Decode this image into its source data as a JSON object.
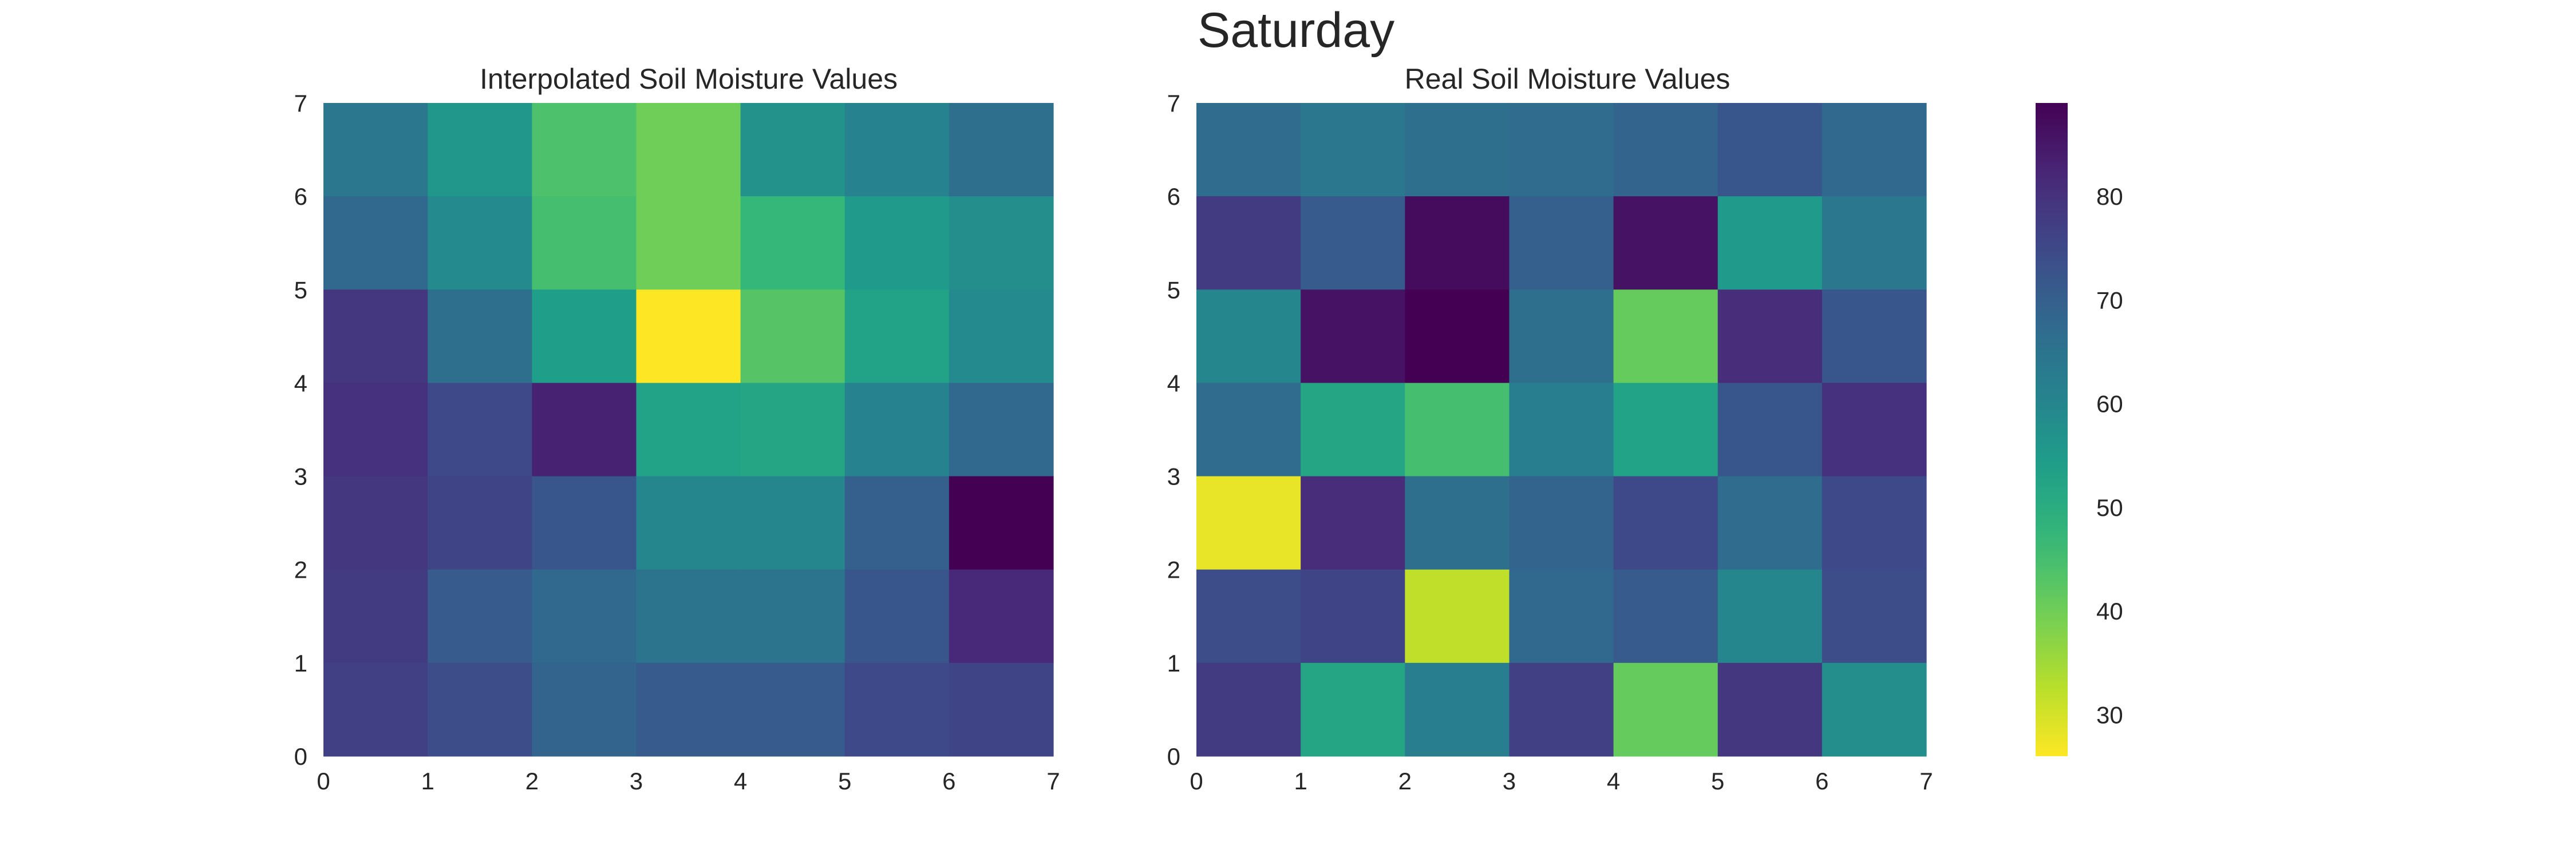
{
  "figure": {
    "title": "Saturday"
  },
  "chart_data": [
    {
      "type": "heatmap",
      "title": "Interpolated Soil Moisture Values",
      "x_ticks": [
        "0",
        "1",
        "2",
        "3",
        "4",
        "5",
        "6",
        "7"
      ],
      "y_ticks": [
        "0",
        "1",
        "2",
        "3",
        "4",
        "5",
        "6",
        "7"
      ],
      "xlim": [
        0,
        7
      ],
      "ylim": [
        0,
        7
      ],
      "grid": false,
      "row_order": "top-to-bottom",
      "values": [
        [
          64,
          56,
          44,
          40,
          57,
          61,
          66
        ],
        [
          68,
          59,
          45,
          40,
          47,
          55,
          58
        ],
        [
          79,
          66,
          54,
          26,
          43,
          53,
          59
        ],
        [
          80,
          75,
          83,
          53,
          52,
          61,
          68
        ],
        [
          79,
          76,
          72,
          60,
          60,
          70,
          89
        ],
        [
          78,
          71,
          68,
          65,
          65,
          72,
          82
        ],
        [
          77,
          74,
          69,
          71,
          71,
          75,
          76
        ]
      ]
    },
    {
      "type": "heatmap",
      "title": "Real Soil Moisture Values",
      "x_ticks": [
        "0",
        "1",
        "2",
        "3",
        "4",
        "5",
        "6",
        "7"
      ],
      "y_ticks": [
        "0",
        "1",
        "2",
        "3",
        "4",
        "5",
        "6",
        "7"
      ],
      "xlim": [
        0,
        7
      ],
      "ylim": [
        0,
        7
      ],
      "grid": false,
      "row_order": "top-to-bottom",
      "values": [
        [
          67,
          64,
          66,
          67,
          69,
          72,
          68
        ],
        [
          78,
          71,
          87,
          70,
          86,
          55,
          64
        ],
        [
          60,
          86,
          89,
          66,
          41,
          81,
          72
        ],
        [
          67,
          52,
          45,
          62,
          53,
          72,
          80
        ],
        [
          28,
          81,
          66,
          69,
          75,
          67,
          75
        ],
        [
          74,
          76,
          32,
          68,
          71,
          60,
          74
        ],
        [
          78,
          52,
          62,
          77,
          41,
          79,
          58
        ]
      ]
    }
  ],
  "colorbar": {
    "colormap": "viridis_r",
    "vmin": 26,
    "vmax": 89,
    "ticks": [
      30,
      40,
      50,
      60,
      70,
      80
    ],
    "tick_labels": [
      "30",
      "40",
      "50",
      "60",
      "70",
      "80"
    ]
  }
}
